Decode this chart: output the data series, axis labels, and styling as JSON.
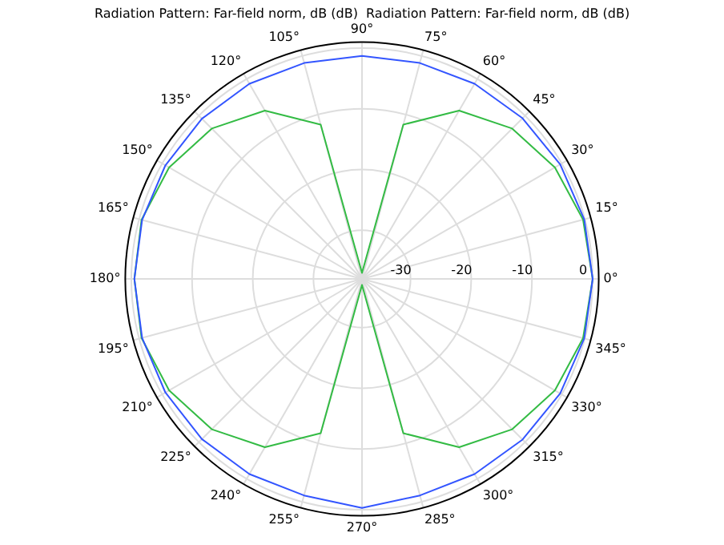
{
  "chart_data": {
    "type": "radar",
    "title": "Radiation Pattern: Far-field norm, dB (dB)  Radiation Pattern: Far-field norm, dB (dB)",
    "categories": [
      "90°",
      "75°",
      "60°",
      "45°",
      "30°",
      "15°",
      "0°",
      "345°",
      "330°",
      "315°",
      "300°",
      "285°",
      "270°",
      "255°",
      "240°",
      "225°",
      "210°",
      "195°",
      "180°",
      "165°",
      "150°",
      "135°",
      "120°",
      "105°"
    ],
    "series": [
      {
        "color": "#3355ff",
        "values": [
          -1.3,
          -1.2,
          -0.9,
          -0.6,
          -0.3,
          -0.1,
          0,
          -0.1,
          -0.3,
          -0.6,
          -0.9,
          -1.1,
          -0.3,
          -1.1,
          -0.9,
          -0.7,
          -0.6,
          -0.5,
          -0.5,
          -0.5,
          -0.6,
          -0.7,
          -0.9,
          -1.2
        ]
      },
      {
        "color": "#33bb44",
        "values": [
          -37,
          -11.7,
          -6,
          -3,
          -1.3,
          -0.3,
          0,
          -0.3,
          -1.3,
          -3,
          -6,
          -11.7,
          -37,
          -11.7,
          -6,
          -3,
          -1.3,
          -0.4,
          -0.5,
          -0.4,
          -1.3,
          -3,
          -6,
          -11.7
        ]
      }
    ],
    "ylim": [
      -38,
      1
    ],
    "yticks": [
      -30,
      -20,
      -10,
      0
    ],
    "grid": true,
    "legend": false
  }
}
